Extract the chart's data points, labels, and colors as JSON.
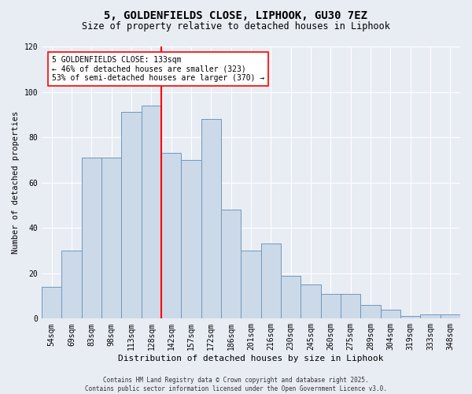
{
  "title_line1": "5, GOLDENFIELDS CLOSE, LIPHOOK, GU30 7EZ",
  "title_line2": "Size of property relative to detached houses in Liphook",
  "xlabel": "Distribution of detached houses by size in Liphook",
  "ylabel": "Number of detached properties",
  "bar_labels": [
    "54sqm",
    "69sqm",
    "83sqm",
    "98sqm",
    "113sqm",
    "128sqm",
    "142sqm",
    "157sqm",
    "172sqm",
    "186sqm",
    "201sqm",
    "216sqm",
    "230sqm",
    "245sqm",
    "260sqm",
    "275sqm",
    "289sqm",
    "304sqm",
    "319sqm",
    "333sqm",
    "348sqm"
  ],
  "bar_values": [
    14,
    30,
    71,
    71,
    91,
    94,
    73,
    70,
    88,
    48,
    30,
    33,
    19,
    15,
    11,
    11,
    6,
    4,
    1,
    2,
    2
  ],
  "bar_color": "#ccd9e8",
  "bar_edge_color": "#7098bc",
  "vline_x": 5.5,
  "vline_color": "red",
  "annotation_text": "5 GOLDENFIELDS CLOSE: 133sqm\n← 46% of detached houses are smaller (323)\n53% of semi-detached houses are larger (370) →",
  "annotation_box_color": "white",
  "annotation_box_edge": "red",
  "ylim": [
    0,
    120
  ],
  "yticks": [
    0,
    20,
    40,
    60,
    80,
    100,
    120
  ],
  "background_color": "#e8edf4",
  "plot_bg_color": "#e8edf4",
  "footer_text": "Contains HM Land Registry data © Crown copyright and database right 2025.\nContains public sector information licensed under the Open Government Licence v3.0.",
  "grid_color": "white",
  "title1_fontsize": 10,
  "title2_fontsize": 8.5,
  "ylabel_fontsize": 7.5,
  "xlabel_fontsize": 8,
  "tick_fontsize": 7,
  "annotation_fontsize": 7,
  "footer_fontsize": 5.5
}
